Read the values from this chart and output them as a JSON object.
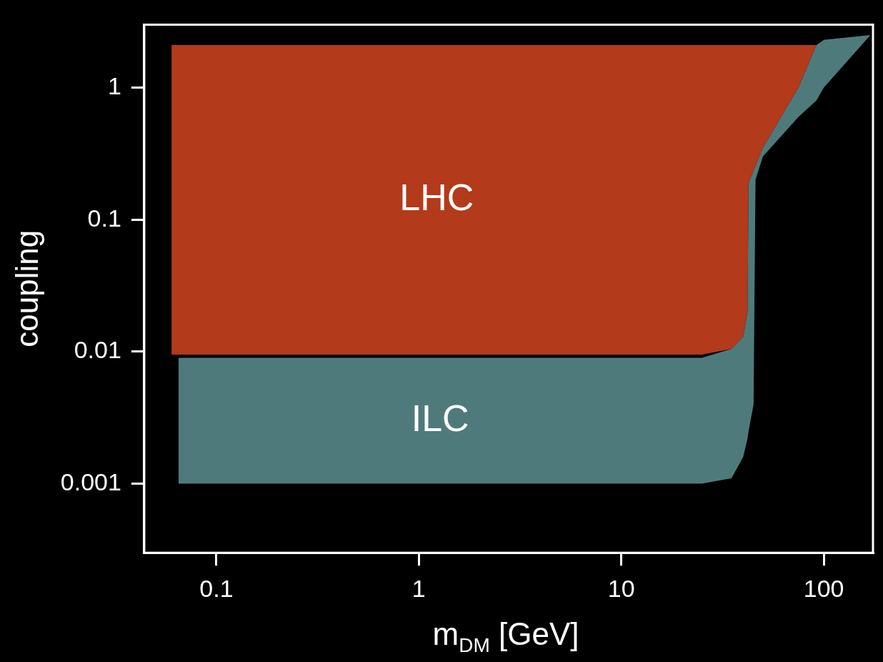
{
  "chart_data": {
    "type": "area",
    "xlabel": "m$_{DM}$ [GeV]",
    "ylabel": "coupling",
    "log": "xy",
    "grid": false,
    "legend": false,
    "marker": "none",
    "xlim": [
      0.044,
      175
    ],
    "xticks": [
      0.1,
      1,
      10,
      100
    ],
    "ylim": [
      0.0003,
      3
    ],
    "yticks": [
      0.001,
      0.01,
      0.1,
      1
    ],
    "series": [
      {
        "color": "#4f7a7c",
        "x": [
          0.065,
          25,
          35,
          40,
          42,
          42.5,
          45,
          46,
          50,
          75,
          92,
          100,
          170
        ],
        "values": [
          null,
          null,
          null,
          null,
          null,
          null,
          null,
          null,
          null,
          null,
          null,
          null,
          null
        ],
        "upper": [
          0.009,
          0.009,
          0.0105,
          0.013,
          0.02,
          0.19,
          0.235,
          0.256,
          0.35,
          1,
          2.1,
          2.3,
          2.5
        ],
        "lower": [
          0.001,
          0.001,
          0.0011,
          0.0016,
          0.0022,
          0.0025,
          0.004,
          0.2,
          0.3,
          0.6,
          0.8,
          1,
          2.5
        ]
      },
      {
        "color": "#b33a1a",
        "x": [
          0.06,
          25,
          35,
          40,
          42,
          42.5,
          50,
          75,
          92
        ],
        "values": [
          null,
          null,
          null,
          null,
          null,
          null,
          null,
          null,
          null
        ],
        "upper": [
          2.1,
          2.1,
          2.1,
          2.1,
          2.1,
          2.1,
          2.1,
          2.1,
          2.1
        ],
        "lower": [
          0.0095,
          0.0095,
          0.0105,
          0.013,
          0.02,
          0.19,
          0.35,
          1,
          2.1
        ]
      }
    ],
    "annotations": [
      "ILC",
      "LHC"
    ]
  }
}
